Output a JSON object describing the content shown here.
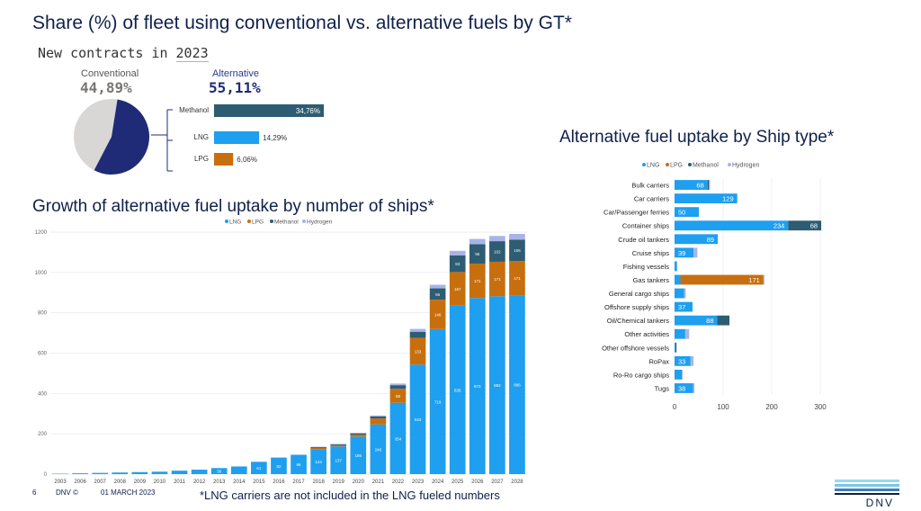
{
  "header": {
    "title": "Share (%) of fleet using conventional vs. alternative fuels by GT*"
  },
  "contracts": {
    "subtitle_prefix": "New contracts in ",
    "subtitle_year": "2023",
    "conventional_label": "Conventional",
    "conventional_value": "44,89%",
    "alternative_label": "Alternative",
    "alternative_value": "55,11%"
  },
  "growth": {
    "title": "Growth of alternative fuel uptake by number of ships*"
  },
  "ship_type": {
    "title": "Alternative fuel uptake by Ship type*"
  },
  "footer": {
    "page_number": "6",
    "brand": "DNV ©",
    "date": "01 MARCH 2023",
    "note": "*LNG carriers are not included in the LNG fueled numbers",
    "logo_text": "DNV"
  },
  "colors": {
    "lng": "#1e9ff0",
    "lpg": "#c76f0e",
    "methanol": "#2e5c73",
    "hydrogen": "#a8b4e8",
    "navy": "#1f2b77",
    "gray": "#d9d6d6",
    "title": "#0f204b"
  },
  "chart_data": [
    {
      "type": "pie",
      "labels": [
        "Conventional",
        "Alternative"
      ],
      "values": [
        44.89,
        55.11
      ],
      "colors": [
        "#d9d6d6",
        "#1f2b77"
      ]
    },
    {
      "type": "bar",
      "orientation": "horizontal",
      "categories": [
        "Methanol",
        "LNG",
        "LPG"
      ],
      "values": [
        34.76,
        14.29,
        6.06
      ],
      "data_labels": [
        "34,76%",
        "14,29%",
        "6,06%"
      ],
      "colors": [
        "#2e5c73",
        "#1e9ff0",
        "#c76f0e"
      ]
    },
    {
      "type": "bar",
      "stacked": true,
      "title": "Growth of alternative fuel uptake by number of ships*",
      "categories": [
        "2003",
        "2006",
        "2007",
        "2008",
        "2009",
        "2010",
        "2011",
        "2012",
        "2013",
        "2014",
        "2015",
        "2016",
        "2017",
        "2018",
        "2019",
        "2020",
        "2021",
        "2022",
        "2023",
        "2024",
        "2025",
        "2026",
        "2027",
        "2028"
      ],
      "series": [
        {
          "name": "LNG",
          "color": "#1e9ff0",
          "values": [
            2,
            4,
            6,
            8,
            10,
            12,
            17,
            22,
            30,
            38,
            61,
            82,
            96,
            124,
            137,
            186,
            246,
            354,
            543,
            719,
            835,
            873,
            882,
            886
          ],
          "labels": [
            "",
            "",
            "",
            "",
            "",
            "",
            "",
            "",
            "30",
            "",
            "61",
            "82",
            "96",
            "124",
            "137",
            "186",
            "246",
            "354",
            "543",
            "719",
            "835",
            "873",
            "882",
            "886"
          ]
        },
        {
          "name": "LPG",
          "color": "#c76f0e",
          "values": [
            0,
            0,
            0,
            0,
            0,
            0,
            0,
            0,
            0,
            0,
            0,
            0,
            0,
            6,
            6,
            10,
            30,
            69,
            133,
            146,
            167,
            171,
            171,
            171
          ],
          "labels": [
            "",
            "",
            "",
            "",
            "",
            "",
            "",
            "",
            "",
            "",
            "",
            "",
            "",
            "",
            "",
            "",
            "",
            "69",
            "133",
            "146",
            "167",
            "171",
            "171",
            "171"
          ]
        },
        {
          "name": "Methanol",
          "color": "#2e5c73",
          "values": [
            0,
            0,
            0,
            0,
            0,
            0,
            0,
            0,
            0,
            0,
            0,
            0,
            0,
            4,
            4,
            6,
            10,
            18,
            30,
            56,
            83,
            96,
            102,
            106
          ],
          "labels": [
            "",
            "",
            "",
            "",
            "",
            "",
            "",
            "",
            "",
            "",
            "",
            "",
            "",
            "",
            "",
            "",
            "",
            "",
            "",
            "56",
            "83",
            "96",
            "102",
            "106"
          ]
        },
        {
          "name": "Hydrogen",
          "color": "#a8b4e8",
          "values": [
            0,
            0,
            0,
            0,
            0,
            0,
            0,
            0,
            0,
            0,
            0,
            0,
            0,
            2,
            3,
            3,
            5,
            8,
            14,
            18,
            22,
            26,
            26,
            28
          ],
          "labels": []
        }
      ],
      "legend": [
        "LNG",
        "LPG",
        "Methanol",
        "Hydrogen"
      ],
      "ylim": [
        0,
        1200
      ],
      "yticks": [
        0,
        200,
        400,
        600,
        800,
        1000,
        1200
      ],
      "grid": true,
      "legend_position": "top-right"
    },
    {
      "type": "bar",
      "orientation": "horizontal",
      "stacked": true,
      "title": "Alternative fuel uptake by Ship type*",
      "categories": [
        "Bulk carriers",
        "Car carriers",
        "Car/Passenger ferries",
        "Container ships",
        "Crude oil tankers",
        "Cruise ships",
        "Fishing vessels",
        "Gas tankers",
        "General cargo ships",
        "Offshore supply ships",
        "Oil/Chemical tankers",
        "Other activities",
        "Other offshore vessels",
        "RoPax",
        "Ro-Ro cargo ships",
        "Tugs"
      ],
      "series": [
        {
          "name": "LNG",
          "color": "#1e9ff0",
          "values": [
            68,
            129,
            50,
            234,
            89,
            39,
            5,
            12,
            20,
            37,
            88,
            22,
            2,
            33,
            15,
            38
          ],
          "labels": [
            "68",
            "129",
            "50",
            "234",
            "89",
            "39",
            "",
            "",
            "",
            "37",
            "88",
            "",
            "",
            "33",
            "",
            "38"
          ]
        },
        {
          "name": "LPG",
          "color": "#c76f0e",
          "values": [
            0,
            0,
            0,
            0,
            0,
            0,
            0,
            171,
            0,
            0,
            0,
            0,
            0,
            0,
            0,
            0
          ],
          "labels": [
            "",
            "",
            "",
            "",
            "",
            "",
            "",
            "171",
            "",
            "",
            "",
            "",
            "",
            "",
            "",
            ""
          ]
        },
        {
          "name": "Methanol",
          "color": "#2e5c73",
          "values": [
            3,
            0,
            0,
            68,
            0,
            0,
            0,
            0,
            0,
            0,
            25,
            0,
            2,
            0,
            0,
            0
          ],
          "labels": [
            "",
            "",
            "",
            "68",
            "",
            "",
            "",
            "",
            "",
            "",
            "",
            "",
            "",
            "",
            "",
            ""
          ]
        },
        {
          "name": "Hydrogen",
          "color": "#a8b4e8",
          "values": [
            2,
            0,
            0,
            0,
            0,
            8,
            0,
            2,
            3,
            0,
            0,
            8,
            0,
            6,
            2,
            3
          ],
          "labels": []
        }
      ],
      "legend": [
        "LNG",
        "LPG",
        "Methanol",
        "Hydrogen"
      ],
      "xlim": [
        0,
        300
      ],
      "xticks": [
        0,
        100,
        200,
        300
      ],
      "grid": true,
      "legend_position": "top"
    }
  ]
}
